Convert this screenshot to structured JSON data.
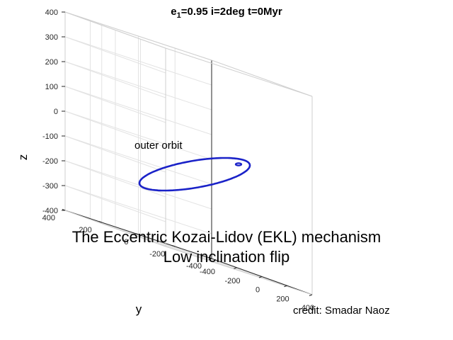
{
  "chart_data": {
    "type": "line3d",
    "title": {
      "e_symbol": "e",
      "e_subscript": "1",
      "rest": "=0.95  i=2deg  t=0Myr"
    },
    "xlim": [
      -400,
      400
    ],
    "ylim": [
      -400,
      400
    ],
    "zlim": [
      -400,
      400
    ],
    "x_ticks": [
      -400,
      -200,
      0,
      200,
      400
    ],
    "y_ticks": [
      -400,
      -200,
      0,
      200,
      400
    ],
    "z_ticks": [
      -400,
      -300,
      -200,
      -100,
      0,
      100,
      200,
      300,
      400
    ],
    "ylabel": "y",
    "zlabel": "z",
    "grid": true,
    "box": "3d",
    "series": [
      {
        "color": "#1a22c8",
        "shape": "ellipse",
        "values": "outer orbit"
      },
      {
        "color": "#1a22c8",
        "shape": "inner-loop",
        "values": "inner orbit"
      }
    ],
    "annotations": {
      "orbit_label": "outer orbit",
      "caption_line1": "The Eccentric Kozai-Lidov (EKL) mechanism",
      "caption_line2": "Low inclination flip",
      "credit": "credit: Smadar Naoz"
    }
  }
}
